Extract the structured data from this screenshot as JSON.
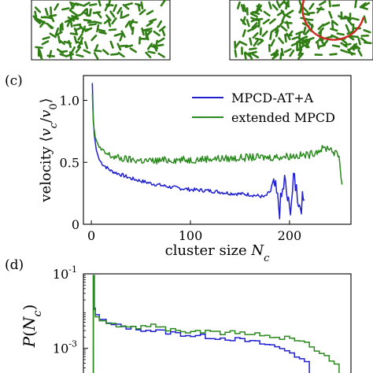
{
  "colors": {
    "series_blue": "#1f1fd0",
    "series_green": "#2a8a1e",
    "particle_green": "#2f7d14",
    "circle_red": "#cc2a22"
  },
  "panel_c": {
    "letter": "(c)"
  },
  "panel_d": {
    "letter": "(d)"
  },
  "chart_data": [
    {
      "type": "line",
      "panel": "c",
      "xlabel": "cluster size N_c",
      "ylabel": "velocity ⟨v_c/v_0⟩",
      "xlim": [
        -8,
        262
      ],
      "ylim": [
        0,
        1.2
      ],
      "xticks": [
        0,
        100,
        200
      ],
      "yticks": [
        0,
        0.5,
        1.0
      ],
      "xtick_labels": [
        "0",
        "100",
        "200"
      ],
      "ytick_labels": [
        "0",
        "0.5",
        "1.0"
      ],
      "legend_position": "top-right",
      "series": [
        {
          "name": "MPCD-AT+A",
          "color": "#1f1fd0",
          "x": [
            1,
            2,
            3,
            5,
            8,
            12,
            20,
            30,
            40,
            60,
            80,
            100,
            120,
            140,
            160,
            175,
            185,
            190,
            195,
            200,
            205,
            210,
            215
          ],
          "y": [
            1.14,
            0.85,
            0.72,
            0.6,
            0.52,
            0.48,
            0.43,
            0.4,
            0.37,
            0.33,
            0.3,
            0.28,
            0.27,
            0.25,
            0.24,
            0.22,
            0.3,
            0.12,
            0.35,
            0.1,
            0.38,
            0.15,
            0.2
          ]
        },
        {
          "name": "extended MPCD",
          "color": "#2a8a1e",
          "x": [
            1,
            2,
            4,
            8,
            12,
            20,
            30,
            40,
            60,
            80,
            100,
            120,
            140,
            160,
            180,
            200,
            220,
            230,
            240,
            245,
            250,
            253
          ],
          "y": [
            1.05,
            0.82,
            0.7,
            0.62,
            0.58,
            0.55,
            0.53,
            0.52,
            0.51,
            0.52,
            0.52,
            0.53,
            0.53,
            0.54,
            0.54,
            0.55,
            0.56,
            0.6,
            0.62,
            0.58,
            0.55,
            0.32
          ]
        }
      ]
    },
    {
      "type": "line",
      "panel": "d",
      "ylabel": "P(N_c)",
      "yscale": "log",
      "yticks": [
        0.1,
        0.001
      ],
      "ytick_labels": [
        "10^-1",
        "10^-3"
      ],
      "xlim": [
        -8,
        262
      ],
      "series": [
        {
          "color": "#1f1fd0",
          "x": [
            2,
            3,
            4,
            8,
            15,
            25,
            40,
            60,
            80,
            100,
            120,
            140,
            160,
            180,
            200,
            210,
            220
          ],
          "y": [
            0.09,
            0.012,
            0.008,
            0.006,
            0.0045,
            0.004,
            0.0035,
            0.003,
            0.0026,
            0.0022,
            0.002,
            0.0018,
            0.0015,
            0.0012,
            0.0008,
            0.0005,
            0.0003
          ]
        },
        {
          "color": "#2a8a1e",
          "x": [
            2,
            3,
            4,
            8,
            15,
            25,
            40,
            60,
            80,
            100,
            120,
            140,
            160,
            180,
            200,
            220,
            240,
            250
          ],
          "y": [
            0.09,
            0.011,
            0.007,
            0.0055,
            0.0045,
            0.004,
            0.0035,
            0.0045,
            0.003,
            0.0028,
            0.0027,
            0.0026,
            0.0024,
            0.0022,
            0.0018,
            0.0012,
            0.0005,
            0.0003
          ]
        }
      ]
    }
  ]
}
